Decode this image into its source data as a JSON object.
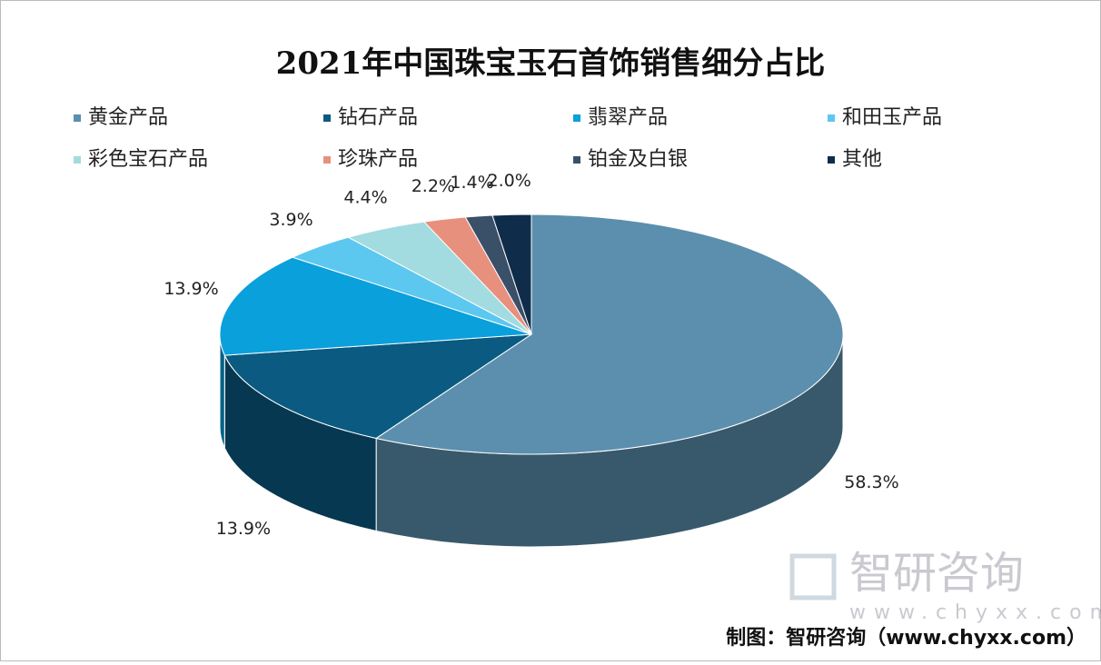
{
  "chart_data": {
    "type": "pie3d",
    "title": "2021年中国珠宝玉石首饰销售细分占比",
    "categories": [
      "黄金产品",
      "钻石产品",
      "翡翠产品",
      "和田玉产品",
      "彩色宝石产品",
      "珍珠产品",
      "铂金及白银",
      "其他"
    ],
    "values": [
      58.3,
      13.9,
      13.9,
      3.9,
      4.4,
      2.2,
      1.4,
      2.0
    ],
    "value_labels": [
      "58.3%",
      "13.9%",
      "13.9%",
      "3.9%",
      "4.4%",
      "2.2%",
      "1.4%",
      "2.0%"
    ],
    "colors": [
      "#5b8fad",
      "#0b5a82",
      "#0aa0dc",
      "#5cc8f0",
      "#a2dbe0",
      "#e8907e",
      "#3a5068",
      "#0f2d4a"
    ],
    "legend": "top"
  },
  "watermark": {
    "name": "智研咨询",
    "url": "www.chyxx.com"
  },
  "source": "制图：智研咨询（www.chyxx.com）"
}
